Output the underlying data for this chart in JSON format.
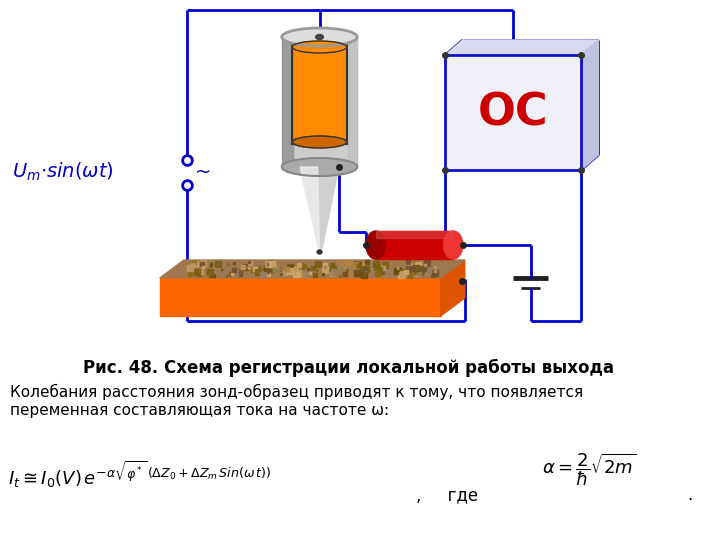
{
  "background_color": "#ffffff",
  "title_caption": "Рис. 48. Схема регистрации локальной работы выхода",
  "text_line1": "Колебания расстояния зонд-образец приводят к тому, что появляется",
  "text_line2": "переменная составляющая тока на частоте ω:",
  "formula_main": "$I_t \\cong I_0(V)\\, e^{-\\alpha\\sqrt{\\varphi^*}\\,(\\Delta Z_0+\\Delta Z_m\\, Sin(\\omega\\, t))}$",
  "formula_alpha": "$\\alpha = \\dfrac{2}{\\hbar}\\sqrt{2m}$",
  "label_gde": ",     где",
  "label_Um": "$U_m{\\cdot}sin(\\omega t)$",
  "label_OC": "ОС",
  "circuit_line_color": "#0000cc",
  "OC_box_color": "#1010cc",
  "OC_text_color": "#cc0000",
  "wire_lw": 2.0
}
